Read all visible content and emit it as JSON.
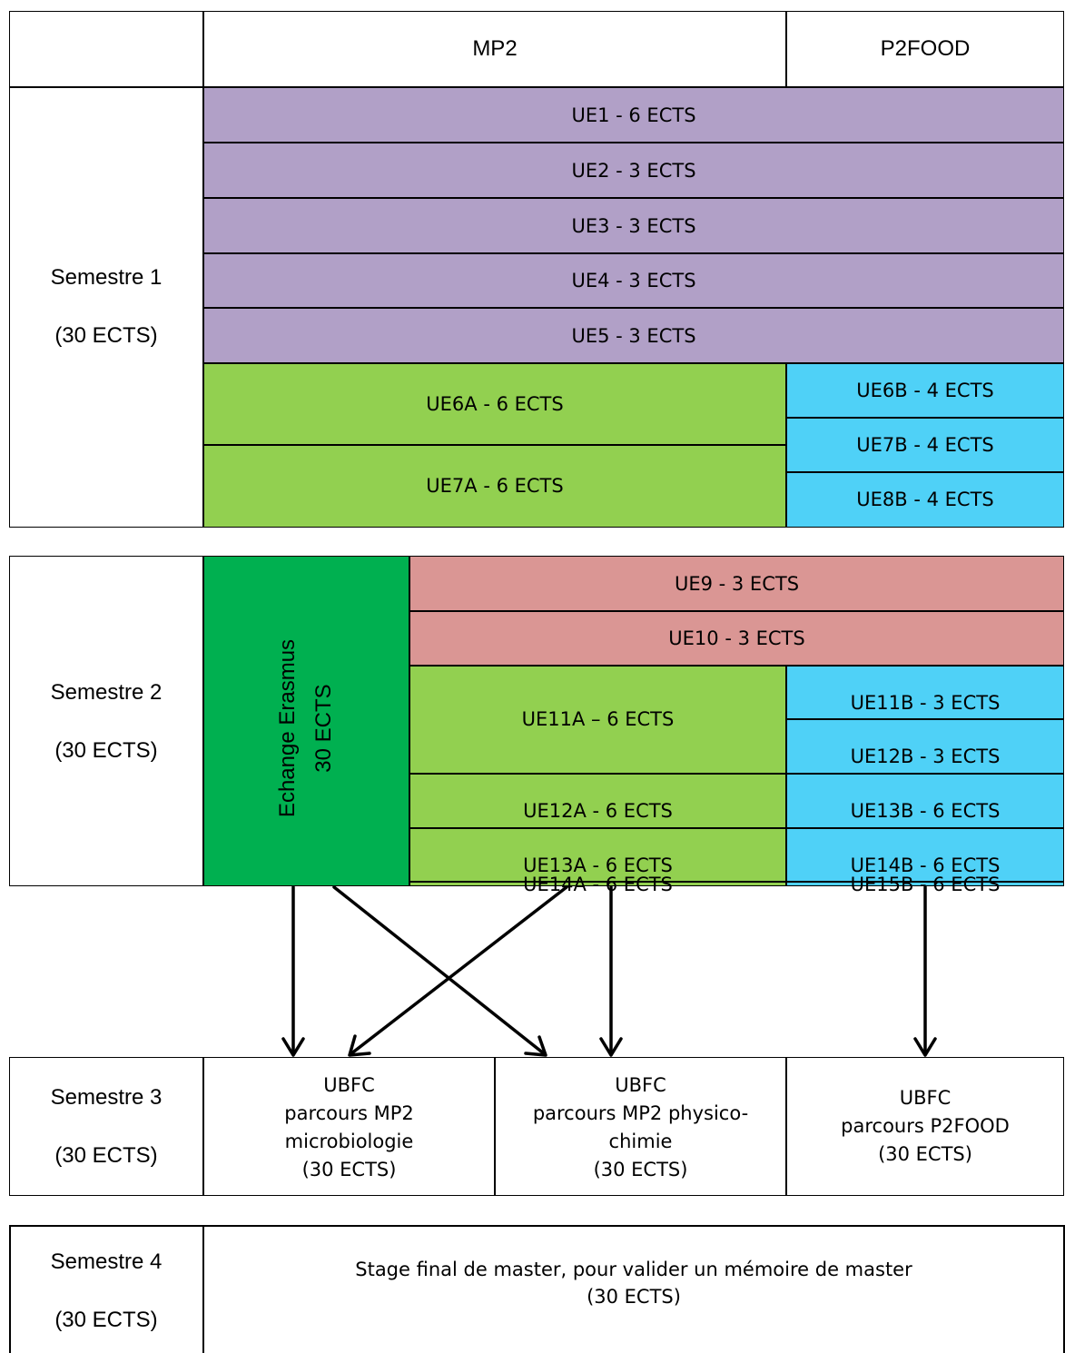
{
  "header": {
    "col_mp2": "MP2",
    "col_p2food": "P2FOOD"
  },
  "semester1": {
    "label": "Semestre 1",
    "ects": "(30 ECTS)",
    "common": [
      "UE1 - 6 ECTS",
      "UE2 - 3 ECTS",
      "UE3 - 3 ECTS",
      "UE4 - 3 ECTS",
      "UE5 - 3 ECTS"
    ],
    "mp2": [
      "UE6A - 6 ECTS",
      "UE7A - 6 ECTS"
    ],
    "p2food": [
      "UE6B - 4 ECTS",
      "UE7B - 4 ECTS",
      "UE8B - 4 ECTS"
    ]
  },
  "semester2": {
    "label": "Semestre 2",
    "ects": "(30 ECTS)",
    "erasmus_line1": "Echange Erasmus",
    "erasmus_line2": "30 ECTS",
    "common": [
      "UE9 - 3 ECTS",
      "UE10 - 3 ECTS"
    ],
    "mp2": [
      "UE11A – 6 ECTS",
      "UE12A - 6 ECTS",
      "UE13A - 6 ECTS",
      "UE14A - 6 ECTS"
    ],
    "p2food": [
      "UE11B - 3 ECTS",
      "UE12B - 3 ECTS",
      "UE13B - 6 ECTS",
      "UE14B - 6 ECTS",
      "UE15B - 6 ECTS"
    ]
  },
  "semester3": {
    "label": "Semestre 3",
    "ects": "(30 ECTS)",
    "options": [
      {
        "line1": "UBFC",
        "line2": "parcours MP2",
        "line3": "microbiologie",
        "line4": "(30 ECTS)"
      },
      {
        "line1": "UBFC",
        "line2": "parcours MP2 physico-",
        "line3": "chimie",
        "line4": "(30 ECTS)"
      },
      {
        "line1": "UBFC",
        "line2": "parcours P2FOOD",
        "line3": "(30 ECTS)"
      }
    ]
  },
  "semester4": {
    "label": "Semestre 4",
    "ects": "(30 ECTS)",
    "text_line1": "Stage final de master, pour valider un mémoire de master",
    "text_line2": "(30 ECTS)"
  },
  "colors": {
    "common": "#b1a0c7",
    "mp2": "#92d050",
    "p2food": "#4fd1f7",
    "semester2_common": "#da9694",
    "erasmus": "#00b050"
  }
}
